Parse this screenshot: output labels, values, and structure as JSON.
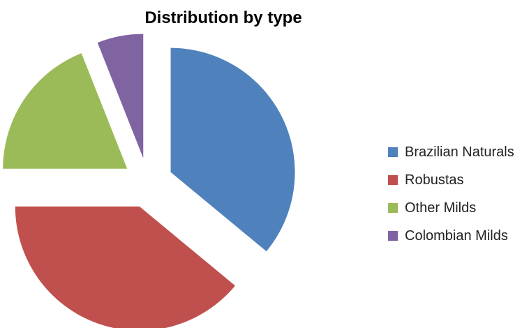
{
  "chart_data": {
    "type": "pie",
    "title": "Distribution by type",
    "legend_position": "right",
    "exploded": true,
    "series": [
      {
        "name": "Brazilian Naturals",
        "value": 36,
        "color": "#4F81BD"
      },
      {
        "name": "Robustas",
        "value": 39,
        "color": "#C0504D"
      },
      {
        "name": "Other Milds",
        "value": 19,
        "color": "#9BBB59"
      },
      {
        "name": "Colombian Milds",
        "value": 6,
        "color": "#8064A2"
      }
    ]
  }
}
